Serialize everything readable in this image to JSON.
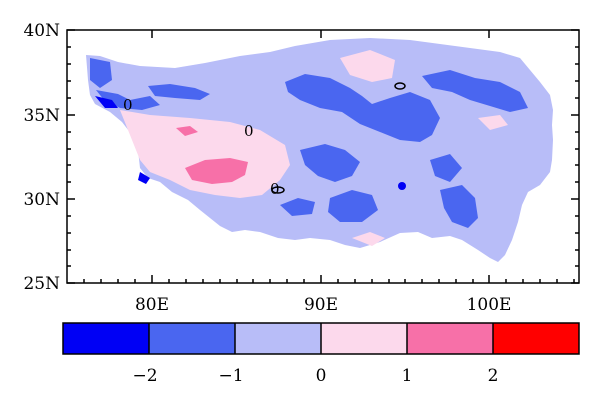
{
  "map": {
    "lat_ticks": [
      "40N",
      "35N",
      "30N",
      "25N"
    ],
    "lon_ticks": [
      "80E",
      "90E",
      "100E"
    ],
    "contour_labels": [
      "0",
      "0",
      "0"
    ],
    "extent": {
      "lon": [
        75,
        105
      ],
      "lat": [
        25,
        40
      ]
    }
  },
  "colorbar": {
    "levels": [
      "−2",
      "−1",
      "0",
      "1",
      "2"
    ],
    "colors": [
      "#0000f5",
      "#4a66f0",
      "#b8bdf8",
      "#fcd9ec",
      "#f770a8",
      "#ff0000"
    ]
  },
  "colors": {
    "strong_negative": "#0000f5",
    "negative": "#4a66f0",
    "weak_negative": "#b8bdf8",
    "weak_positive": "#fcd9ec",
    "positive": "#f770a8",
    "strong_positive": "#ff0000"
  }
}
